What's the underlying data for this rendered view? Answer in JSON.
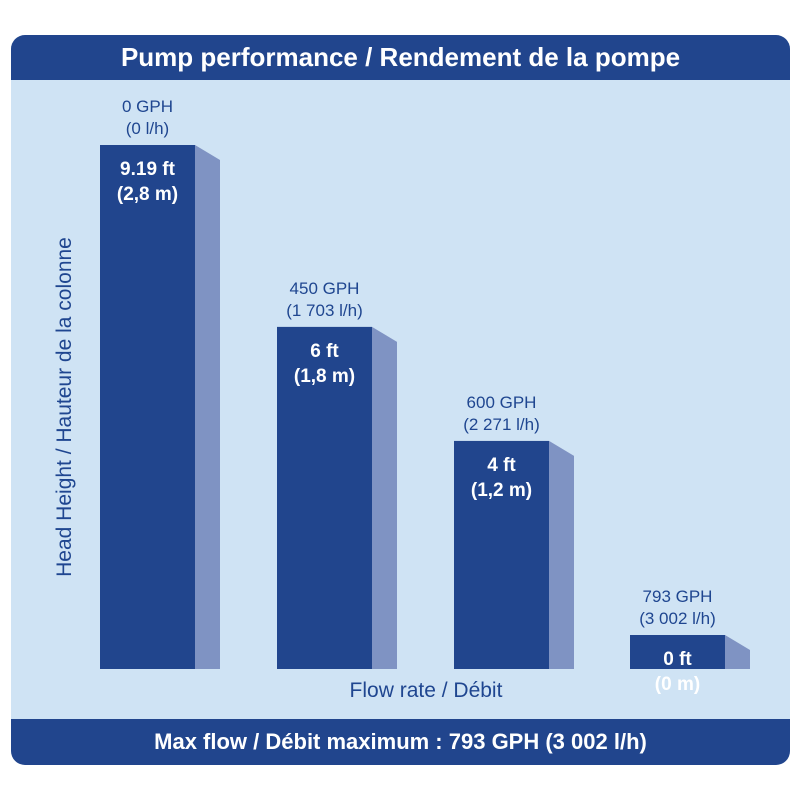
{
  "chart_data": {
    "type": "bar",
    "title": "Pump performance / Rendement de la pompe",
    "xlabel": "Flow rate / Débit",
    "ylabel": "Head Height / Hauteur de la colonne",
    "footer": "Max flow / Débit maximum : 793 GPH (3 002 l/h)",
    "categories": [
      "0 GPH",
      "450 GPH",
      "600 GPH",
      "793 GPH"
    ],
    "categories_metric": [
      "(0 l/h)",
      "(1 703 l/h)",
      "(2 271 l/h)",
      "(3 002 l/h)"
    ],
    "values": [
      9.19,
      6,
      4,
      0
    ],
    "value_labels": [
      "9.19 ft",
      "6 ft",
      "4 ft",
      "0 ft"
    ],
    "value_labels_metric": [
      "(2,8 m)",
      "(1,8 m)",
      "(1,2 m)",
      "(0 m)"
    ],
    "unit": "ft",
    "ylim": [
      0,
      9.19
    ],
    "grid": false,
    "legend": "none",
    "colors": {
      "bar_front": "#21458d",
      "bar_side": "#7f93c3",
      "background": "#cfe3f4",
      "label_text": "#1f4690",
      "banner": "#21458d"
    }
  }
}
